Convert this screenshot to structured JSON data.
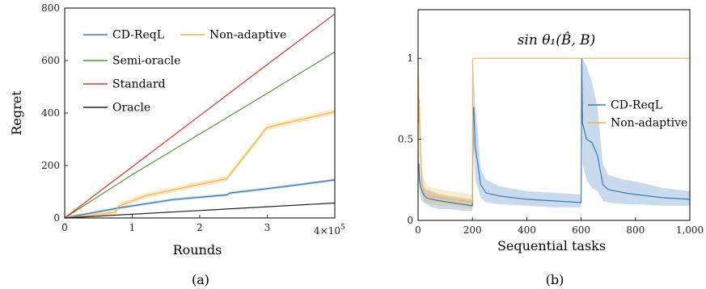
{
  "chart_data": [
    {
      "type": "line",
      "caption": "(a)",
      "xlabel": "Rounds",
      "ylabel": "Regret",
      "x_scale_label": "4×10",
      "x_scale_exp": "5",
      "xlim": [
        0,
        400000
      ],
      "ylim": [
        0,
        800
      ],
      "xticks": [
        0,
        100000,
        200000,
        300000
      ],
      "xtick_labels": [
        "0",
        "1",
        "2",
        "3"
      ],
      "yticks": [
        0,
        200,
        400,
        600,
        800
      ],
      "ytick_labels": [
        "0",
        "200",
        "400",
        "600",
        "800"
      ],
      "grid": false,
      "legend_position": "top-left",
      "series": [
        {
          "name": "CD-ReqL",
          "color": "#3b79b6",
          "band": 5,
          "x": [
            0,
            80000,
            160000,
            240000,
            245000,
            320000,
            400000
          ],
          "y": [
            0,
            38,
            70,
            88,
            95,
            118,
            145
          ]
        },
        {
          "name": "Non-adaptive",
          "color": "#f2b443",
          "band": 10,
          "x": [
            0,
            75000,
            80000,
            120000,
            240000,
            295000,
            300000,
            350000,
            400000
          ],
          "y": [
            0,
            22,
            45,
            85,
            150,
            330,
            345,
            375,
            405
          ]
        },
        {
          "name": "Semi-oracle",
          "color": "#4a9a2e",
          "x": [
            0,
            100000,
            200000,
            300000,
            400000
          ],
          "y": [
            0,
            165,
            320,
            475,
            633
          ]
        },
        {
          "name": "Standard",
          "color": "#e0302a",
          "x": [
            0,
            100000,
            200000,
            300000,
            400000
          ],
          "y": [
            0,
            195,
            390,
            585,
            778
          ]
        },
        {
          "name": "Oracle",
          "color": "#222222",
          "x": [
            0,
            400000
          ],
          "y": [
            0,
            57
          ]
        }
      ]
    },
    {
      "type": "line",
      "caption": "(b)",
      "title": "sin θ₁(B̂, B)",
      "xlabel": "Sequential tasks",
      "ylabel": "",
      "xlim": [
        0,
        1000
      ],
      "ylim": [
        0,
        1.3
      ],
      "xticks": [
        0,
        200,
        400,
        600,
        800,
        1000
      ],
      "xtick_labels": [
        "0",
        "200",
        "400",
        "600",
        "800",
        "1,000"
      ],
      "yticks": [
        0,
        0.5,
        1
      ],
      "ytick_labels": [
        "0",
        "0.5",
        "1"
      ],
      "grid": false,
      "legend_position": "right",
      "series": [
        {
          "name": "CD-ReqL",
          "color": "#3b79b6",
          "x": [
            0,
            3,
            5,
            10,
            15,
            20,
            30,
            50,
            80,
            120,
            160,
            200,
            202,
            205,
            210,
            220,
            230,
            250,
            300,
            400,
            500,
            600,
            602,
            605,
            620,
            640,
            660,
            680,
            700,
            760,
            800,
            900,
            1000
          ],
          "y": [
            0.32,
            0.35,
            0.25,
            0.2,
            0.18,
            0.16,
            0.14,
            0.13,
            0.12,
            0.11,
            0.1,
            0.09,
            0.65,
            0.7,
            0.45,
            0.35,
            0.22,
            0.17,
            0.15,
            0.13,
            0.12,
            0.11,
            1.0,
            0.6,
            0.5,
            0.48,
            0.4,
            0.22,
            0.19,
            0.17,
            0.16,
            0.14,
            0.13
          ],
          "band_hi": [
            0.4,
            0.45,
            0.33,
            0.27,
            0.24,
            0.21,
            0.19,
            0.18,
            0.16,
            0.15,
            0.14,
            0.13,
            0.95,
            0.9,
            0.7,
            0.55,
            0.32,
            0.25,
            0.21,
            0.18,
            0.17,
            0.16,
            1.0,
            1.0,
            0.95,
            0.85,
            0.7,
            0.35,
            0.28,
            0.25,
            0.24,
            0.2,
            0.18
          ],
          "band_lo": [
            0.2,
            0.25,
            0.17,
            0.14,
            0.12,
            0.11,
            0.1,
            0.08,
            0.07,
            0.07,
            0.06,
            0.06,
            0.3,
            0.45,
            0.25,
            0.2,
            0.14,
            0.11,
            0.1,
            0.09,
            0.08,
            0.08,
            1.0,
            0.35,
            0.25,
            0.2,
            0.18,
            0.12,
            0.11,
            0.1,
            0.1,
            0.09,
            0.09
          ]
        },
        {
          "name": "Non-adaptive",
          "color": "#f2b443",
          "x": [
            0,
            2,
            4,
            8,
            12,
            16,
            20,
            30,
            50,
            80,
            120,
            160,
            200,
            201,
            210,
            1000
          ],
          "y": [
            1.0,
            0.6,
            0.75,
            0.45,
            0.3,
            0.22,
            0.18,
            0.16,
            0.15,
            0.14,
            0.13,
            0.12,
            0.11,
            1.0,
            1.0,
            1.0
          ],
          "band_hi": [
            1.0,
            0.85,
            0.95,
            0.65,
            0.45,
            0.32,
            0.26,
            0.22,
            0.2,
            0.19,
            0.18,
            0.17,
            0.16,
            1.0,
            1.0,
            1.0
          ],
          "band_lo": [
            1.0,
            0.4,
            0.55,
            0.3,
            0.2,
            0.15,
            0.12,
            0.11,
            0.1,
            0.09,
            0.09,
            0.08,
            0.07,
            1.0,
            1.0,
            1.0
          ]
        }
      ]
    }
  ]
}
